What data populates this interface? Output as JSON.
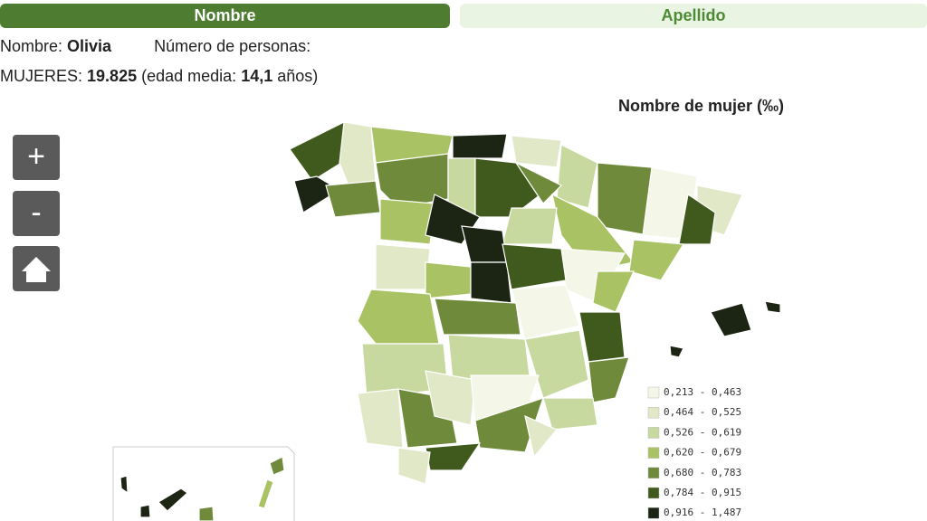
{
  "tabs": [
    "Nombre",
    "Apellido"
  ],
  "info": {
    "name_label": "Nombre:",
    "name": "Olivia",
    "count_label": "Número de personas:",
    "women_label": "MUJERES:",
    "women": "19.825",
    "age_label": "(edad media:",
    "age": "14,1",
    "age_unit": "años)"
  },
  "map": {
    "title": "Nombre de mujer (‰)",
    "legend": [
      {
        "label": "0,213 - 0,463",
        "color": "#f4f6e8"
      },
      {
        "label": "0,464 - 0,525",
        "color": "#e1e8c8"
      },
      {
        "label": "0,526 - 0,619",
        "color": "#c8d9a0"
      },
      {
        "label": "0,620 - 0,679",
        "color": "#a9c264"
      },
      {
        "label": "0,680 - 0,783",
        "color": "#6f8a3a"
      },
      {
        "label": "0,784 - 0,915",
        "color": "#3f5a1c"
      },
      {
        "label": "0,916 - 1,487",
        "color": "#1c2414"
      }
    ]
  }
}
